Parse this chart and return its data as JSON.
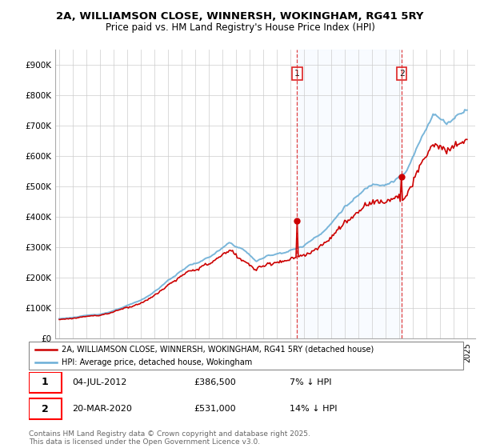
{
  "title_line1": "2A, WILLIAMSON CLOSE, WINNERSH, WOKINGHAM, RG41 5RY",
  "title_line2": "Price paid vs. HM Land Registry's House Price Index (HPI)",
  "ylim": [
    0,
    950000
  ],
  "ytick_values": [
    0,
    100000,
    200000,
    300000,
    400000,
    500000,
    600000,
    700000,
    800000,
    900000
  ],
  "ytick_labels": [
    "£0",
    "£100K",
    "£200K",
    "£300K",
    "£400K",
    "£500K",
    "£600K",
    "£700K",
    "£800K",
    "£900K"
  ],
  "hpi_color": "#6baed6",
  "price_color": "#cc0000",
  "transaction1_date": 2012.5,
  "transaction1_price": 386500,
  "transaction2_date": 2020.2,
  "transaction2_price": 531000,
  "vline_color": "#dd2222",
  "span_color": "#ddeeff",
  "legend_entry1": "2A, WILLIAMSON CLOSE, WINNERSH, WOKINGHAM, RG41 5RY (detached house)",
  "legend_entry2": "HPI: Average price, detached house, Wokingham",
  "annotation1_date": "04-JUL-2012",
  "annotation1_price": "£386,500",
  "annotation1_hpi": "7% ↓ HPI",
  "annotation2_date": "20-MAR-2020",
  "annotation2_price": "£531,000",
  "annotation2_hpi": "14% ↓ HPI",
  "footer": "Contains HM Land Registry data © Crown copyright and database right 2025.\nThis data is licensed under the Open Government Licence v3.0.",
  "bg_color": "#ffffff"
}
